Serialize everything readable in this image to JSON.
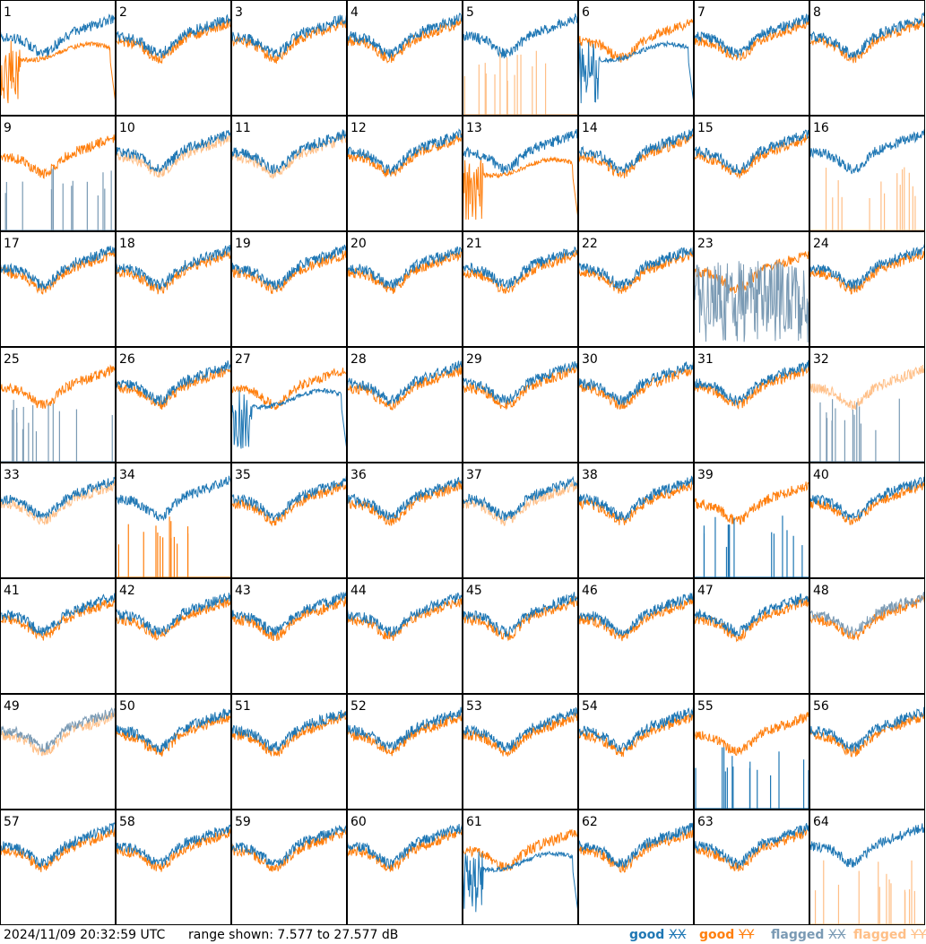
{
  "chart_data": {
    "type": "line",
    "panels_count": 64,
    "grid": "8x8",
    "ylim_db": [
      7.577,
      27.577
    ],
    "colors": {
      "good_xx": "#1f77b4",
      "good_yy": "#ff7f0e",
      "flagged_xx": "#7a9ab4",
      "flagged_yy": "#ffbf87"
    },
    "series_names": [
      "good XX",
      "good YY",
      "flagged XX",
      "flagged YY"
    ],
    "panel_labels": [
      "1",
      "2",
      "3",
      "4",
      "5",
      "6",
      "7",
      "8",
      "9",
      "10",
      "11",
      "12",
      "13",
      "14",
      "15",
      "16",
      "17",
      "18",
      "19",
      "20",
      "21",
      "22",
      "23",
      "24",
      "25",
      "26",
      "27",
      "28",
      "29",
      "30",
      "31",
      "32",
      "33",
      "34",
      "35",
      "36",
      "37",
      "38",
      "39",
      "40",
      "41",
      "42",
      "43",
      "44",
      "45",
      "46",
      "47",
      "48",
      "49",
      "50",
      "51",
      "52",
      "53",
      "54",
      "55",
      "56",
      "57",
      "58",
      "59",
      "60",
      "61",
      "62",
      "63",
      "64"
    ],
    "panels": [
      {
        "label": "1",
        "xx": "good",
        "yy": "good",
        "xx_kind": "normal",
        "yy_kind": "dropend"
      },
      {
        "label": "2",
        "xx": "good",
        "yy": "good",
        "xx_kind": "normal",
        "yy_kind": "normal"
      },
      {
        "label": "3",
        "xx": "good",
        "yy": "good",
        "xx_kind": "normal",
        "yy_kind": "normal"
      },
      {
        "label": "4",
        "xx": "good",
        "yy": "good",
        "xx_kind": "normal",
        "yy_kind": "normal"
      },
      {
        "label": "5",
        "xx": "good",
        "yy": "flagged",
        "xx_kind": "normal",
        "yy_kind": "spiky"
      },
      {
        "label": "6",
        "xx": "good",
        "yy": "good",
        "xx_kind": "dropend",
        "yy_kind": "normal"
      },
      {
        "label": "7",
        "xx": "good",
        "yy": "good",
        "xx_kind": "normal",
        "yy_kind": "normal"
      },
      {
        "label": "8",
        "xx": "good",
        "yy": "good",
        "xx_kind": "normal",
        "yy_kind": "normal"
      },
      {
        "label": "9",
        "xx": "flagged",
        "yy": "good",
        "xx_kind": "spiky",
        "yy_kind": "normal"
      },
      {
        "label": "10",
        "xx": "good",
        "yy": "flagged",
        "xx_kind": "normal",
        "yy_kind": "normal"
      },
      {
        "label": "11",
        "xx": "good",
        "yy": "flagged",
        "xx_kind": "normal",
        "yy_kind": "normal"
      },
      {
        "label": "12",
        "xx": "good",
        "yy": "good",
        "xx_kind": "normal",
        "yy_kind": "normal"
      },
      {
        "label": "13",
        "xx": "good",
        "yy": "good",
        "xx_kind": "normal",
        "yy_kind": "dropend"
      },
      {
        "label": "14",
        "xx": "good",
        "yy": "good",
        "xx_kind": "normal",
        "yy_kind": "normal"
      },
      {
        "label": "15",
        "xx": "good",
        "yy": "good",
        "xx_kind": "normal",
        "yy_kind": "normal"
      },
      {
        "label": "16",
        "xx": "good",
        "yy": "flagged",
        "xx_kind": "normal",
        "yy_kind": "spiky"
      },
      {
        "label": "17",
        "xx": "good",
        "yy": "good",
        "xx_kind": "normal",
        "yy_kind": "normal"
      },
      {
        "label": "18",
        "xx": "good",
        "yy": "good",
        "xx_kind": "normal",
        "yy_kind": "normal"
      },
      {
        "label": "19",
        "xx": "good",
        "yy": "good",
        "xx_kind": "normal",
        "yy_kind": "normal"
      },
      {
        "label": "20",
        "xx": "good",
        "yy": "good",
        "xx_kind": "normal",
        "yy_kind": "normal"
      },
      {
        "label": "21",
        "xx": "good",
        "yy": "good",
        "xx_kind": "normal",
        "yy_kind": "normal"
      },
      {
        "label": "22",
        "xx": "good",
        "yy": "good",
        "xx_kind": "normal",
        "yy_kind": "normal"
      },
      {
        "label": "23",
        "xx": "flagged",
        "yy": "good",
        "xx_kind": "noisy",
        "yy_kind": "normal"
      },
      {
        "label": "24",
        "xx": "good",
        "yy": "good",
        "xx_kind": "normal",
        "yy_kind": "normal"
      },
      {
        "label": "25",
        "xx": "flagged",
        "yy": "good",
        "xx_kind": "spiky",
        "yy_kind": "normal"
      },
      {
        "label": "26",
        "xx": "good",
        "yy": "good",
        "xx_kind": "normal",
        "yy_kind": "normal"
      },
      {
        "label": "27",
        "xx": "good",
        "yy": "good",
        "xx_kind": "dropend",
        "yy_kind": "normal"
      },
      {
        "label": "28",
        "xx": "good",
        "yy": "good",
        "xx_kind": "normal",
        "yy_kind": "normal"
      },
      {
        "label": "29",
        "xx": "good",
        "yy": "good",
        "xx_kind": "normal",
        "yy_kind": "normal"
      },
      {
        "label": "30",
        "xx": "good",
        "yy": "good",
        "xx_kind": "normal",
        "yy_kind": "normal"
      },
      {
        "label": "31",
        "xx": "good",
        "yy": "good",
        "xx_kind": "normal",
        "yy_kind": "normal"
      },
      {
        "label": "32",
        "xx": "flagged",
        "yy": "flagged",
        "xx_kind": "spiky",
        "yy_kind": "normal"
      },
      {
        "label": "33",
        "xx": "good",
        "yy": "flagged",
        "xx_kind": "normal",
        "yy_kind": "normal"
      },
      {
        "label": "34",
        "xx": "good",
        "yy": "good",
        "xx_kind": "normal",
        "yy_kind": "spiky"
      },
      {
        "label": "35",
        "xx": "good",
        "yy": "good",
        "xx_kind": "normal",
        "yy_kind": "normal"
      },
      {
        "label": "36",
        "xx": "good",
        "yy": "good",
        "xx_kind": "normal",
        "yy_kind": "normal"
      },
      {
        "label": "37",
        "xx": "good",
        "yy": "flagged",
        "xx_kind": "normal",
        "yy_kind": "normal"
      },
      {
        "label": "38",
        "xx": "good",
        "yy": "good",
        "xx_kind": "normal",
        "yy_kind": "normal"
      },
      {
        "label": "39",
        "xx": "good",
        "yy": "good",
        "xx_kind": "spiky",
        "yy_kind": "normal"
      },
      {
        "label": "40",
        "xx": "good",
        "yy": "good",
        "xx_kind": "normal",
        "yy_kind": "normal"
      },
      {
        "label": "41",
        "xx": "good",
        "yy": "good",
        "xx_kind": "normal",
        "yy_kind": "normal"
      },
      {
        "label": "42",
        "xx": "good",
        "yy": "good",
        "xx_kind": "normal",
        "yy_kind": "normal"
      },
      {
        "label": "43",
        "xx": "good",
        "yy": "good",
        "xx_kind": "normal",
        "yy_kind": "normal"
      },
      {
        "label": "44",
        "xx": "good",
        "yy": "good",
        "xx_kind": "normal",
        "yy_kind": "normal"
      },
      {
        "label": "45",
        "xx": "good",
        "yy": "good",
        "xx_kind": "normal",
        "yy_kind": "normal"
      },
      {
        "label": "46",
        "xx": "good",
        "yy": "good",
        "xx_kind": "normal",
        "yy_kind": "normal"
      },
      {
        "label": "47",
        "xx": "good",
        "yy": "good",
        "xx_kind": "normal",
        "yy_kind": "normal"
      },
      {
        "label": "48",
        "xx": "flagged",
        "yy": "good",
        "xx_kind": "normal",
        "yy_kind": "normal"
      },
      {
        "label": "49",
        "xx": "flagged",
        "yy": "flagged",
        "xx_kind": "normal",
        "yy_kind": "normal"
      },
      {
        "label": "50",
        "xx": "good",
        "yy": "good",
        "xx_kind": "normal",
        "yy_kind": "normal"
      },
      {
        "label": "51",
        "xx": "good",
        "yy": "good",
        "xx_kind": "normal",
        "yy_kind": "normal"
      },
      {
        "label": "52",
        "xx": "good",
        "yy": "good",
        "xx_kind": "normal",
        "yy_kind": "normal"
      },
      {
        "label": "53",
        "xx": "good",
        "yy": "good",
        "xx_kind": "normal",
        "yy_kind": "normal"
      },
      {
        "label": "54",
        "xx": "good",
        "yy": "good",
        "xx_kind": "normal",
        "yy_kind": "normal"
      },
      {
        "label": "55",
        "xx": "good",
        "yy": "good",
        "xx_kind": "spiky",
        "yy_kind": "normal"
      },
      {
        "label": "56",
        "xx": "good",
        "yy": "good",
        "xx_kind": "normal",
        "yy_kind": "normal"
      },
      {
        "label": "57",
        "xx": "good",
        "yy": "good",
        "xx_kind": "normal",
        "yy_kind": "normal"
      },
      {
        "label": "58",
        "xx": "good",
        "yy": "good",
        "xx_kind": "normal",
        "yy_kind": "normal"
      },
      {
        "label": "59",
        "xx": "good",
        "yy": "good",
        "xx_kind": "normal",
        "yy_kind": "normal"
      },
      {
        "label": "60",
        "xx": "good",
        "yy": "good",
        "xx_kind": "normal",
        "yy_kind": "normal"
      },
      {
        "label": "61",
        "xx": "good",
        "yy": "good",
        "xx_kind": "dropend",
        "yy_kind": "normal"
      },
      {
        "label": "62",
        "xx": "good",
        "yy": "good",
        "xx_kind": "normal",
        "yy_kind": "normal"
      },
      {
        "label": "63",
        "xx": "good",
        "yy": "good",
        "xx_kind": "normal",
        "yy_kind": "normal"
      },
      {
        "label": "64",
        "xx": "good",
        "yy": "flagged",
        "xx_kind": "normal",
        "yy_kind": "spiky"
      }
    ]
  },
  "footer": {
    "timestamp": "2024/11/09 20:32:59 UTC",
    "range_text": "range shown: 7.577 to 27.577 dB",
    "legend": {
      "good": "good",
      "flagged": "flagged",
      "xx": "XX",
      "yy": "YY"
    }
  }
}
